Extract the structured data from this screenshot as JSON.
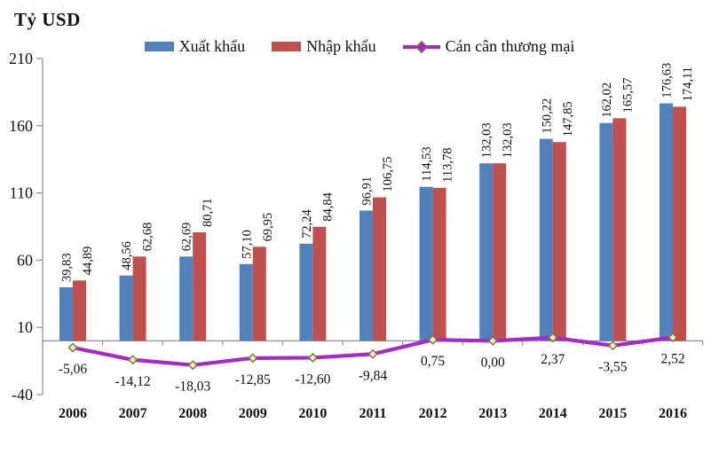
{
  "chart_data": {
    "type": "bar+line",
    "title": "Tỷ USD",
    "ylabel": "Tỷ USD",
    "xlabel": "",
    "ylim": [
      -40,
      210
    ],
    "yticks": [
      210,
      160,
      110,
      60,
      10,
      -40
    ],
    "grid": false,
    "legend_position": "top",
    "axis_color": "#8F8F8F",
    "text_color": "#111111",
    "categories": [
      "2006",
      "2007",
      "2008",
      "2009",
      "2010",
      "2011",
      "2012",
      "2013",
      "2014",
      "2015",
      "2016"
    ],
    "series": [
      {
        "name": "Xuất khẩu",
        "type": "bar",
        "color": "#4F81BD",
        "values": [
          39.83,
          48.56,
          62.69,
          57.1,
          72.24,
          96.91,
          114.53,
          132.03,
          150.22,
          162.02,
          176.63
        ],
        "labels": [
          "39,83",
          "48,56",
          "62,69",
          "57,10",
          "72,24",
          "96,91",
          "114,53",
          "132,03",
          "150,22",
          "162,02",
          "176,63"
        ]
      },
      {
        "name": "Nhập khẩu",
        "type": "bar",
        "color": "#C0504D",
        "values": [
          44.89,
          62.68,
          80.71,
          69.95,
          84.84,
          106.75,
          113.78,
          132.03,
          147.85,
          165.57,
          174.11
        ],
        "labels": [
          "44,89",
          "62,68",
          "80,71",
          "69,95",
          "84,84",
          "106,75",
          "113,78",
          "132,03",
          "147,85",
          "165,57",
          "174,11"
        ]
      },
      {
        "name": "Cán cân thương mại",
        "type": "line",
        "color": "#A62AC8",
        "marker": {
          "shape": "diamond",
          "stroke": "#7E7E2E",
          "fill": "#F0ECD8"
        },
        "values": [
          -5.06,
          -14.12,
          -18.03,
          -12.85,
          -12.6,
          -9.84,
          0.75,
          0.0,
          2.37,
          -3.55,
          2.52
        ],
        "labels": [
          "-5,06",
          "-14,12",
          "-18,03",
          "-12,85",
          "-12,60",
          "-9,84",
          "0,75",
          "0,00",
          "2,37",
          "-3,55",
          "2,52"
        ]
      }
    ]
  }
}
